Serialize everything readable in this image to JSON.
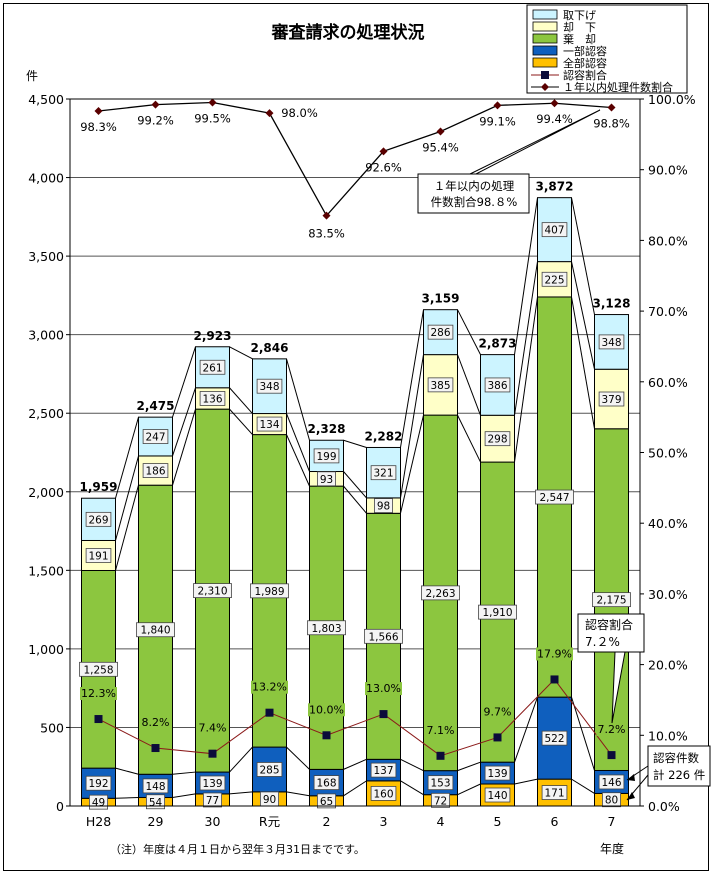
{
  "chart_data": {
    "type": "bar",
    "title": "審査請求の処理状況",
    "ylabel_left": "件",
    "xlabel": "年度",
    "ylim_left": [
      0,
      4500
    ],
    "ylim_right": [
      0,
      100
    ],
    "left_ticks": [
      "0",
      "500",
      "1,000",
      "1,500",
      "2,000",
      "2,500",
      "3,000",
      "3,500",
      "4,000",
      "4,500"
    ],
    "right_ticks": [
      "0.0%",
      "10.0%",
      "20.0%",
      "30.0%",
      "40.0%",
      "50.0%",
      "60.0%",
      "70.0%",
      "80.0%",
      "90.0%",
      "100.0%"
    ],
    "categories": [
      "H28",
      "29",
      "30",
      "R元",
      "2",
      "3",
      "4",
      "5",
      "6",
      "7"
    ],
    "stack_series": [
      {
        "name": "全部認容",
        "color": "#FFC000",
        "values": [
          49,
          54,
          77,
          90,
          65,
          160,
          72,
          140,
          171,
          80
        ],
        "labels": [
          "49",
          "54",
          "77",
          "90",
          "65",
          "160",
          "72",
          "140",
          "171",
          "80"
        ]
      },
      {
        "name": "一部認容",
        "color": "#0F5FBE",
        "values": [
          192,
          148,
          139,
          285,
          168,
          137,
          153,
          139,
          522,
          146
        ],
        "labels": [
          "192",
          "148",
          "139",
          "285",
          "168",
          "137",
          "153",
          "139",
          "522",
          "146"
        ]
      },
      {
        "name": "棄　却",
        "color": "#8CC63F",
        "values": [
          1258,
          1840,
          2310,
          1989,
          1803,
          1566,
          2263,
          1910,
          2547,
          2175
        ],
        "labels": [
          "1,258",
          "1,840",
          "2,310",
          "1,989",
          "1,803",
          "1,566",
          "2,263",
          "1,910",
          "2,547",
          "2,175"
        ]
      },
      {
        "name": "却　下",
        "color": "#FFFFC8",
        "values": [
          191,
          186,
          136,
          134,
          93,
          98,
          385,
          298,
          225,
          379
        ],
        "labels": [
          "191",
          "186",
          "136",
          "134",
          "93",
          "98",
          "385",
          "298",
          "225",
          "379"
        ]
      },
      {
        "name": "取下げ",
        "color": "#CCF4FF",
        "values": [
          269,
          247,
          261,
          348,
          199,
          321,
          286,
          386,
          407,
          348
        ],
        "labels": [
          "269",
          "247",
          "261",
          "348",
          "199",
          "321",
          "286",
          "386",
          "407",
          "348"
        ]
      }
    ],
    "totals": [
      "1,959",
      "2,475",
      "2,923",
      "2,846",
      "2,328",
      "2,282",
      "3,159",
      "2,873",
      "3,872",
      "3,128"
    ],
    "line_series": [
      {
        "name": "認容割合",
        "color": "#8B1A1A",
        "marker": "square",
        "values": [
          12.3,
          8.2,
          7.4,
          13.2,
          10.0,
          13.0,
          7.1,
          9.7,
          17.9,
          7.2
        ],
        "labels": [
          "12.3%",
          "8.2%",
          "7.4%",
          "13.2%",
          "10.0%",
          "13.0%",
          "7.1%",
          "9.7%",
          "17.9%",
          "7.2%"
        ]
      },
      {
        "name": "１年以内処理件数割合",
        "color": "#000000",
        "marker": "diamond",
        "values": [
          98.3,
          99.2,
          99.5,
          98.0,
          83.5,
          92.6,
          95.4,
          99.1,
          99.4,
          98.8
        ],
        "labels": [
          "98.3%",
          "99.2%",
          "99.5%",
          "98.0%",
          "83.5%",
          "92.6%",
          "95.4%",
          "99.1%",
          "99.4%",
          "98.8%"
        ]
      }
    ],
    "legend_position": "top-right",
    "grid": true
  },
  "legend_items": [
    {
      "label": "取下げ",
      "kind": "box",
      "color": "#CCF4FF"
    },
    {
      "label": "却　下",
      "kind": "box",
      "color": "#FFFFC8"
    },
    {
      "label": "棄　却",
      "kind": "box",
      "color": "#8CC63F"
    },
    {
      "label": "一部認容",
      "kind": "box",
      "color": "#0F5FBE"
    },
    {
      "label": "全部認容",
      "kind": "box",
      "color": "#FFC000"
    },
    {
      "label": "認容割合",
      "kind": "square",
      "color": "#8B1A1A"
    },
    {
      "label": "１年以内処理件数割合",
      "kind": "diamond",
      "color": "#000000"
    }
  ],
  "callouts": {
    "within_year": [
      "１年以内の処理",
      "件数割合98.８%"
    ],
    "approval_rate": [
      "認容割合",
      "7.２%"
    ],
    "approval_count": [
      "認容件数",
      "計 226 件"
    ]
  },
  "footnote": "（注）年度は４月１日から翌年３月31日までです。"
}
